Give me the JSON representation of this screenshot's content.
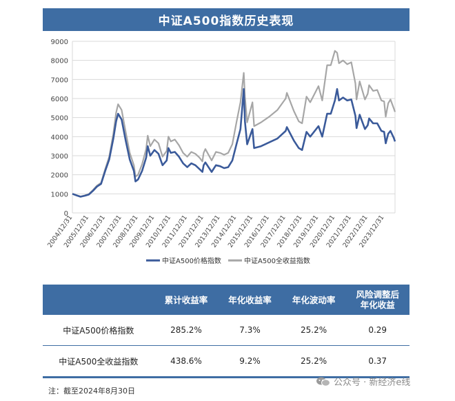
{
  "title": "中证A500指数历史表现",
  "chart_data": {
    "type": "line",
    "title": "中证A500指数历史表现",
    "xlabel": "",
    "ylabel": "",
    "ylim": [
      0,
      9000
    ],
    "yticks": [
      0,
      1000,
      2000,
      3000,
      4000,
      5000,
      6000,
      7000,
      8000,
      9000
    ],
    "xlim": [
      "2004-12-31",
      "2024-08-30"
    ],
    "xticks": [
      "2004/12/31",
      "2005/12/31",
      "2006/12/31",
      "2007/12/31",
      "2008/12/31",
      "2009/12/31",
      "2010/12/31",
      "2011/12/31",
      "2012/12/31",
      "2013/12/31",
      "2014/12/31",
      "2015/12/31",
      "2016/12/31",
      "2017/12/31",
      "2018/12/31",
      "2019/12/31",
      "2020/12/31",
      "2021/12/31",
      "2022/12/31",
      "2023/12/31"
    ],
    "grid": true,
    "legend_position": "bottom",
    "series": [
      {
        "name": "中证A500价格指数",
        "color": "#3a5a9a",
        "x": [
          "2004-12-31",
          "2005-03-31",
          "2005-06-30",
          "2005-09-30",
          "2005-12-31",
          "2006-03-31",
          "2006-06-30",
          "2006-09-30",
          "2006-12-31",
          "2007-03-31",
          "2007-06-30",
          "2007-08-31",
          "2007-10-15",
          "2007-12-31",
          "2008-03-31",
          "2008-06-30",
          "2008-09-30",
          "2008-11-04",
          "2008-12-31",
          "2009-03-31",
          "2009-06-30",
          "2009-08-04",
          "2009-09-30",
          "2009-12-31",
          "2010-03-31",
          "2010-06-30",
          "2010-09-30",
          "2010-11-08",
          "2010-12-31",
          "2011-03-31",
          "2011-06-30",
          "2011-09-30",
          "2011-12-31",
          "2012-03-31",
          "2012-06-30",
          "2012-09-30",
          "2012-12-03",
          "2012-12-31",
          "2013-02-08",
          "2013-06-27",
          "2013-09-30",
          "2013-12-31",
          "2014-03-31",
          "2014-06-30",
          "2014-09-30",
          "2014-12-31",
          "2015-03-31",
          "2015-06-12",
          "2015-07-08",
          "2015-08-26",
          "2015-12-22",
          "2016-01-28",
          "2016-06-30",
          "2016-12-31",
          "2017-06-30",
          "2017-12-31",
          "2018-01-26",
          "2018-06-30",
          "2018-10-18",
          "2018-12-31",
          "2019-04-08",
          "2019-06-30",
          "2019-12-31",
          "2020-03-23",
          "2020-07-10",
          "2020-09-30",
          "2020-12-31",
          "2021-02-18",
          "2021-03-31",
          "2021-06-30",
          "2021-09-30",
          "2021-12-31",
          "2022-03-31",
          "2022-04-26",
          "2022-07-05",
          "2022-10-31",
          "2022-12-31",
          "2023-01-31",
          "2023-04-30",
          "2023-07-31",
          "2023-10-31",
          "2023-12-31",
          "2024-02-05",
          "2024-03-31",
          "2024-05-20",
          "2024-07-31",
          "2024-08-30"
        ],
        "y": [
          1000,
          920,
          850,
          900,
          960,
          1150,
          1380,
          1520,
          2200,
          2800,
          3900,
          4800,
          5200,
          4900,
          3800,
          2800,
          2200,
          1650,
          1750,
          2200,
          2900,
          3500,
          3000,
          3300,
          3100,
          2500,
          2750,
          3400,
          3150,
          3200,
          2950,
          2600,
          2400,
          2600,
          2500,
          2300,
          2150,
          2500,
          2650,
          2150,
          2500,
          2450,
          2350,
          2400,
          2750,
          3600,
          4400,
          6500,
          4800,
          3600,
          4400,
          3400,
          3500,
          3700,
          3900,
          4300,
          4500,
          3800,
          3400,
          3300,
          4250,
          4000,
          4550,
          4000,
          5200,
          5200,
          5900,
          6500,
          5900,
          6050,
          5900,
          5950,
          5100,
          4450,
          5150,
          4400,
          4600,
          4950,
          4700,
          4700,
          4300,
          4250,
          3650,
          4150,
          4300,
          3950,
          3750
        ]
      },
      {
        "name": "中证A500全收益指数",
        "color": "#a6a6a6",
        "x": [
          "2004-12-31",
          "2005-03-31",
          "2005-06-30",
          "2005-09-30",
          "2005-12-31",
          "2006-03-31",
          "2006-06-30",
          "2006-09-30",
          "2006-12-31",
          "2007-03-31",
          "2007-06-30",
          "2007-08-31",
          "2007-10-15",
          "2007-12-31",
          "2008-03-31",
          "2008-06-30",
          "2008-09-30",
          "2008-11-04",
          "2008-12-31",
          "2009-03-31",
          "2009-06-30",
          "2009-08-04",
          "2009-09-30",
          "2009-12-31",
          "2010-03-31",
          "2010-06-30",
          "2010-09-30",
          "2010-11-08",
          "2010-12-31",
          "2011-03-31",
          "2011-06-30",
          "2011-09-30",
          "2011-12-31",
          "2012-03-31",
          "2012-06-30",
          "2012-09-30",
          "2012-12-03",
          "2012-12-31",
          "2013-02-08",
          "2013-06-27",
          "2013-09-30",
          "2013-12-31",
          "2014-03-31",
          "2014-06-30",
          "2014-09-30",
          "2014-12-31",
          "2015-03-31",
          "2015-06-12",
          "2015-07-08",
          "2015-08-26",
          "2015-12-22",
          "2016-01-28",
          "2016-06-30",
          "2016-12-31",
          "2017-06-30",
          "2017-12-31",
          "2018-01-26",
          "2018-06-30",
          "2018-10-18",
          "2018-12-31",
          "2019-04-08",
          "2019-06-30",
          "2019-12-31",
          "2020-03-23",
          "2020-07-10",
          "2020-09-30",
          "2020-12-31",
          "2021-02-18",
          "2021-03-31",
          "2021-06-30",
          "2021-09-30",
          "2021-12-31",
          "2022-03-31",
          "2022-04-26",
          "2022-07-05",
          "2022-10-31",
          "2022-12-31",
          "2023-01-31",
          "2023-04-30",
          "2023-07-31",
          "2023-10-31",
          "2023-12-31",
          "2024-02-05",
          "2024-03-31",
          "2024-05-20",
          "2024-07-31",
          "2024-08-30"
        ],
        "y": [
          1000,
          925,
          860,
          915,
          985,
          1190,
          1430,
          1580,
          2300,
          2950,
          4150,
          5250,
          5700,
          5400,
          4250,
          3150,
          2500,
          1900,
          2000,
          2550,
          3350,
          4050,
          3500,
          3850,
          3650,
          2950,
          3250,
          4000,
          3750,
          3850,
          3550,
          3150,
          2950,
          3200,
          3100,
          2900,
          2700,
          3150,
          3350,
          2750,
          3200,
          3150,
          3050,
          3150,
          3600,
          4750,
          5800,
          7350,
          6100,
          4750,
          5800,
          4550,
          4750,
          5050,
          5400,
          6000,
          6300,
          5350,
          4800,
          4700,
          6100,
          5800,
          6650,
          5900,
          7750,
          7750,
          8500,
          8400,
          7850,
          8000,
          7800,
          7900,
          6800,
          5950,
          6900,
          5950,
          6250,
          6700,
          6400,
          6450,
          5900,
          5850,
          5050,
          5750,
          5950,
          5500,
          5300
        ]
      }
    ]
  },
  "table": {
    "headers": [
      "",
      "累计收益率",
      "年化收益率",
      "年化波动率",
      [
        "风险调整后",
        "年化收益"
      ]
    ],
    "rows": [
      [
        "中证A500价格指数",
        "285.2%",
        "7.3%",
        "25.2%",
        "0.29"
      ],
      [
        "中证A500全收益指数",
        "438.6%",
        "9.2%",
        "25.2%",
        "0.37"
      ]
    ]
  },
  "footnote": "注：截至2024年8月30日",
  "watermark": {
    "text": "公众号 · 新经济e线",
    "icon": "wechat-icon"
  },
  "colors": {
    "accent": "#3e6da3",
    "price_line": "#3a5a9a",
    "total_return_line": "#a6a6a6",
    "grid": "#d9d9d9"
  }
}
